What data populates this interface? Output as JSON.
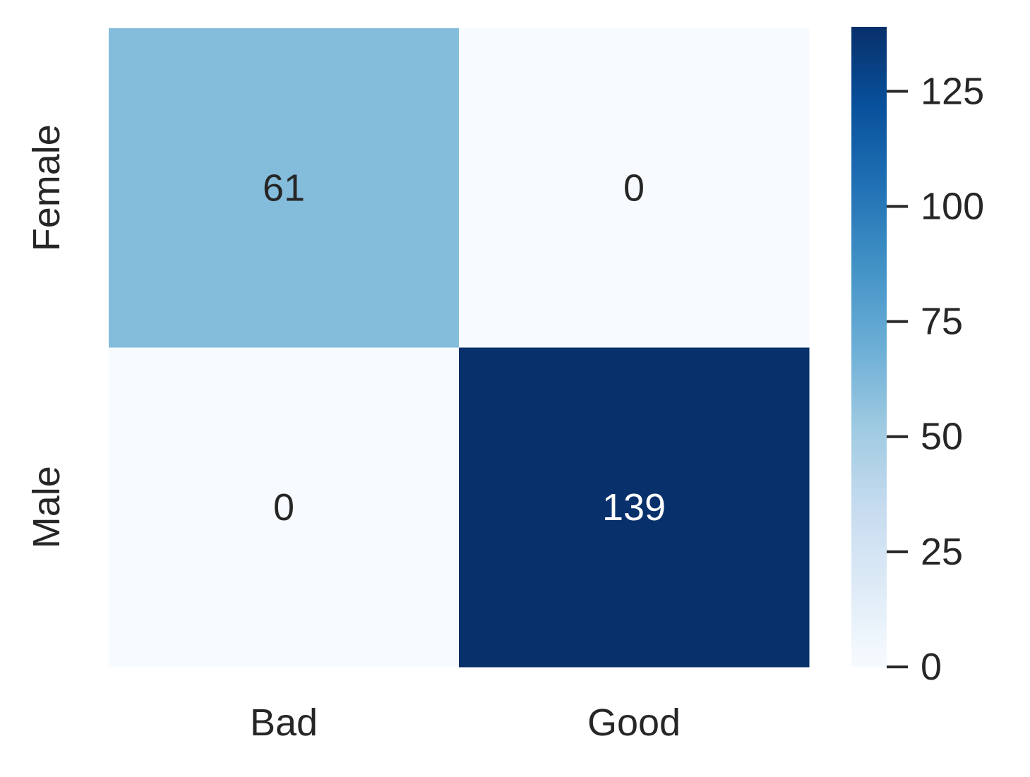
{
  "chart_data": {
    "type": "heatmap",
    "x_categories": [
      "Bad",
      "Good"
    ],
    "y_categories": [
      "Female",
      "Male"
    ],
    "values": [
      [
        61,
        0
      ],
      [
        0,
        139
      ]
    ],
    "colormap": "Blues",
    "colorbar_lim": [
      0,
      139
    ],
    "colorbar_ticks": [
      0,
      25,
      50,
      75,
      100,
      125
    ]
  }
}
